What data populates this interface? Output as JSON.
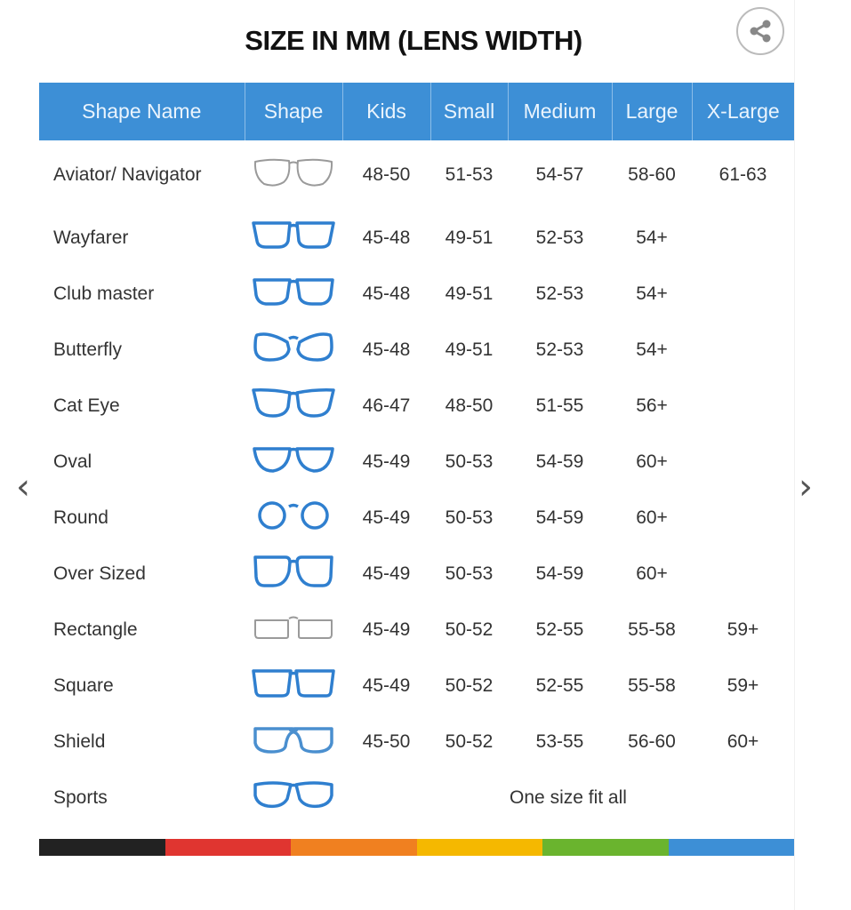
{
  "title": "SIZE IN MM (LENS WIDTH)",
  "share_icon": "share-icon",
  "nav": {
    "prev_icon": "chevron-left-icon",
    "next_icon": "chevron-right-icon"
  },
  "headers": [
    "Shape Name",
    "Shape",
    "Kids",
    "Small",
    "Medium",
    "Large",
    "X-Large"
  ],
  "rows": [
    {
      "name": "Aviator/ Navigator",
      "icon": "aviator",
      "color": "#9a9a9a",
      "sizes": [
        "48-50",
        "51-53",
        "54-57",
        "58-60",
        "61-63"
      ]
    },
    {
      "name": "Wayfarer",
      "icon": "wayfarer",
      "color": "#2f7fcf",
      "sizes": [
        "45-48",
        "49-51",
        "52-53",
        "54+",
        ""
      ]
    },
    {
      "name": "Club master",
      "icon": "clubmaster",
      "color": "#2f7fcf",
      "sizes": [
        "45-48",
        "49-51",
        "52-53",
        "54+",
        ""
      ]
    },
    {
      "name": "Butterfly",
      "icon": "butterfly",
      "color": "#2f7fcf",
      "sizes": [
        "45-48",
        "49-51",
        "52-53",
        "54+",
        ""
      ]
    },
    {
      "name": "Cat Eye",
      "icon": "cateye",
      "color": "#2f7fcf",
      "sizes": [
        "46-47",
        "48-50",
        "51-55",
        "56+",
        ""
      ]
    },
    {
      "name": "Oval",
      "icon": "oval",
      "color": "#2f7fcf",
      "sizes": [
        "45-49",
        "50-53",
        "54-59",
        "60+",
        ""
      ]
    },
    {
      "name": "Round",
      "icon": "round",
      "color": "#2f7fcf",
      "sizes": [
        "45-49",
        "50-53",
        "54-59",
        "60+",
        ""
      ]
    },
    {
      "name": "Over Sized",
      "icon": "oversized",
      "color": "#2f7fcf",
      "sizes": [
        "45-49",
        "50-53",
        "54-59",
        "60+",
        ""
      ]
    },
    {
      "name": "Rectangle",
      "icon": "rectangle",
      "color": "#9a9a9a",
      "sizes": [
        "45-49",
        "50-52",
        "52-55",
        "55-58",
        "59+"
      ]
    },
    {
      "name": "Square",
      "icon": "square",
      "color": "#2f7fcf",
      "sizes": [
        "45-49",
        "50-52",
        "52-55",
        "55-58",
        "59+"
      ]
    },
    {
      "name": "Shield",
      "icon": "shield",
      "color": "#4a8fcf",
      "sizes": [
        "45-50",
        "50-52",
        "53-55",
        "56-60",
        "60+"
      ]
    },
    {
      "name": "Sports",
      "icon": "sports",
      "color": "#2f7fcf",
      "merged": "One size fit all"
    }
  ],
  "color_bar": [
    "#222222",
    "#e03530",
    "#f08020",
    "#f5b800",
    "#6ab42e",
    "#3d8fd6"
  ],
  "header_color": "#3d8fd6"
}
